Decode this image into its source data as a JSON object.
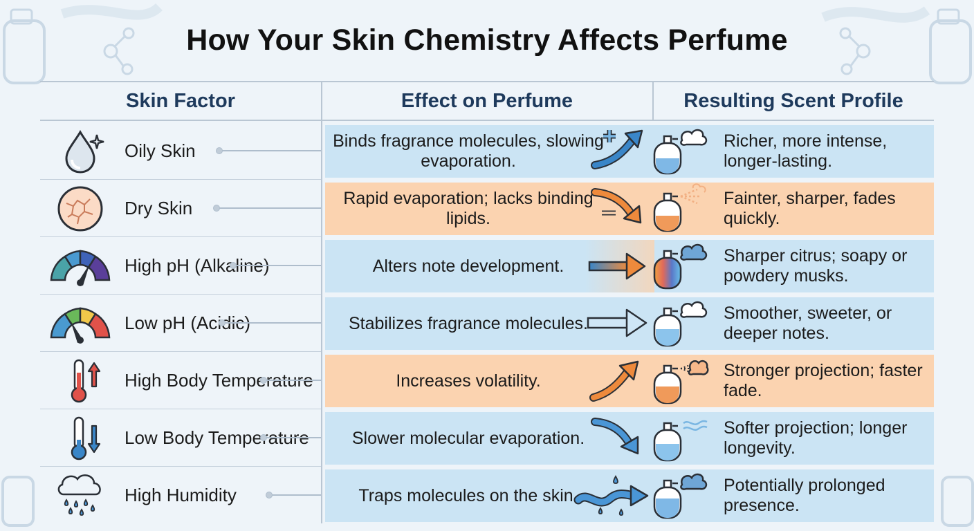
{
  "title": "How Your Skin Chemistry Affects Perfume",
  "headers": {
    "factor": "Skin Factor",
    "effect": "Effect on Perfume",
    "result": "Resulting Scent Profile"
  },
  "rows": [
    {
      "factor": "Oily Skin",
      "effect": "Binds fragrance molecules, slowing evaporation.",
      "result": "Richer, more intense, longer-lasting.",
      "tone": "blue"
    },
    {
      "factor": "Dry Skin",
      "effect": "Rapid evaporation; lacks binding lipids.",
      "result": "Fainter, sharper, fades quickly.",
      "tone": "orange"
    },
    {
      "factor": "High pH (Alkaline)",
      "effect": "Alters note development.",
      "result": "Sharper citrus; soapy or powdery musks.",
      "tone": "blue"
    },
    {
      "factor": "Low pH (Acidic)",
      "effect": "Stabilizes fragrance molecules.",
      "result": "Smoother, sweeter, or deeper notes.",
      "tone": "blue"
    },
    {
      "factor": "High Body Temperature",
      "effect": "Increases volatility.",
      "result": "Stronger projection; faster fade.",
      "tone": "orange"
    },
    {
      "factor": "Low Body Temperature",
      "effect": "Slower molecular evaporation.",
      "result": "Softer projection; longer longevity.",
      "tone": "blue"
    },
    {
      "factor": "High Humidity",
      "effect": "Traps molecules on the skin.",
      "result": "Potentially prolonged presence.",
      "tone": "blue"
    }
  ],
  "icons": {
    "factors": [
      "oil-droplet-icon",
      "cracked-skin-icon",
      "alkaline-gauge-icon",
      "acidic-gauge-icon",
      "thermometer-up-icon",
      "thermometer-down-icon",
      "rain-cloud-icon"
    ],
    "arrows": [
      "plus-up-arrow-icon",
      "minus-down-arrow-icon",
      "gradient-right-arrow-icon",
      "right-arrow-icon",
      "up-arrow-icon",
      "down-arrow-icon",
      "wave-arrow-icon"
    ],
    "bottles": [
      "bottle-cloud-icon",
      "bottle-spray-icon",
      "bottle-rainbow-icon",
      "bottle-cloud-icon",
      "bottle-spray-icon",
      "bottle-wind-icon",
      "bottle-cloud-icon"
    ]
  },
  "colors": {
    "blue_band": "#cbe4f4",
    "orange_band": "#fbd3b0",
    "header_text": "#1e3a5c",
    "arrow_blue": "#3a86c8",
    "arrow_orange": "#ee8a3c"
  }
}
